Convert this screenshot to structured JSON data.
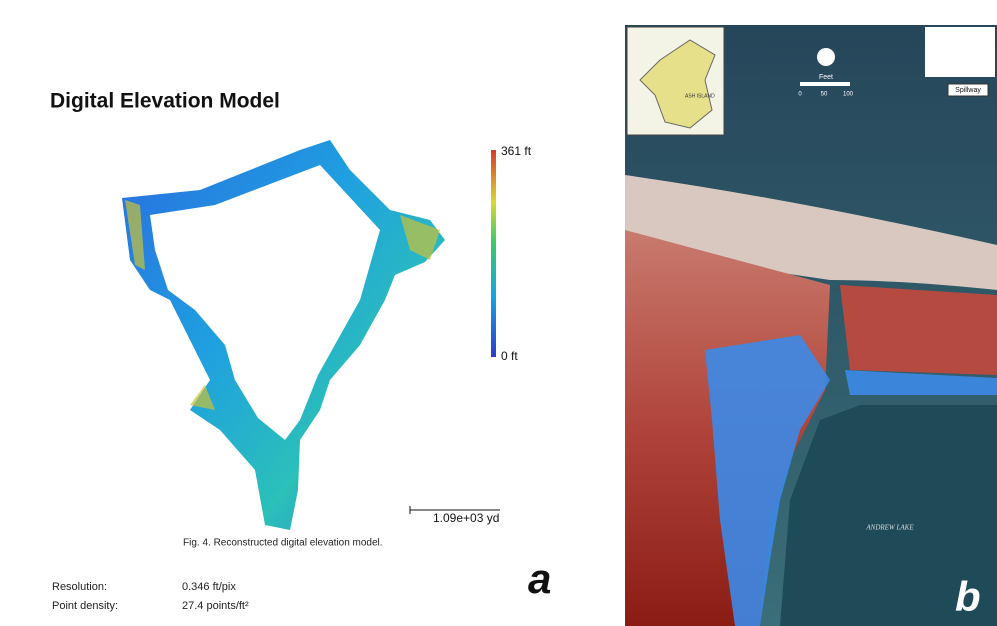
{
  "panel_a": {
    "title": "Digital Elevation Model",
    "colorbar": {
      "max_label": "361 ft",
      "min_label": "0 ft"
    },
    "scale_label": "1.09e+03 yd",
    "caption": "Fig. 4. Reconstructed digital elevation model.",
    "stats": [
      {
        "label": "Resolution:",
        "value": "0.346 ft/pix"
      },
      {
        "label": "Point density:",
        "value": "27.4 points/ft²"
      }
    ],
    "panel_label": "a"
  },
  "panel_b": {
    "inset_label": "ASH ISLAND",
    "scale_unit": "Feet",
    "scale_ticks": [
      "0",
      "50",
      "100"
    ],
    "spillway": "Spillway",
    "lake": "ANDREW LAKE",
    "panel_label": "b"
  }
}
